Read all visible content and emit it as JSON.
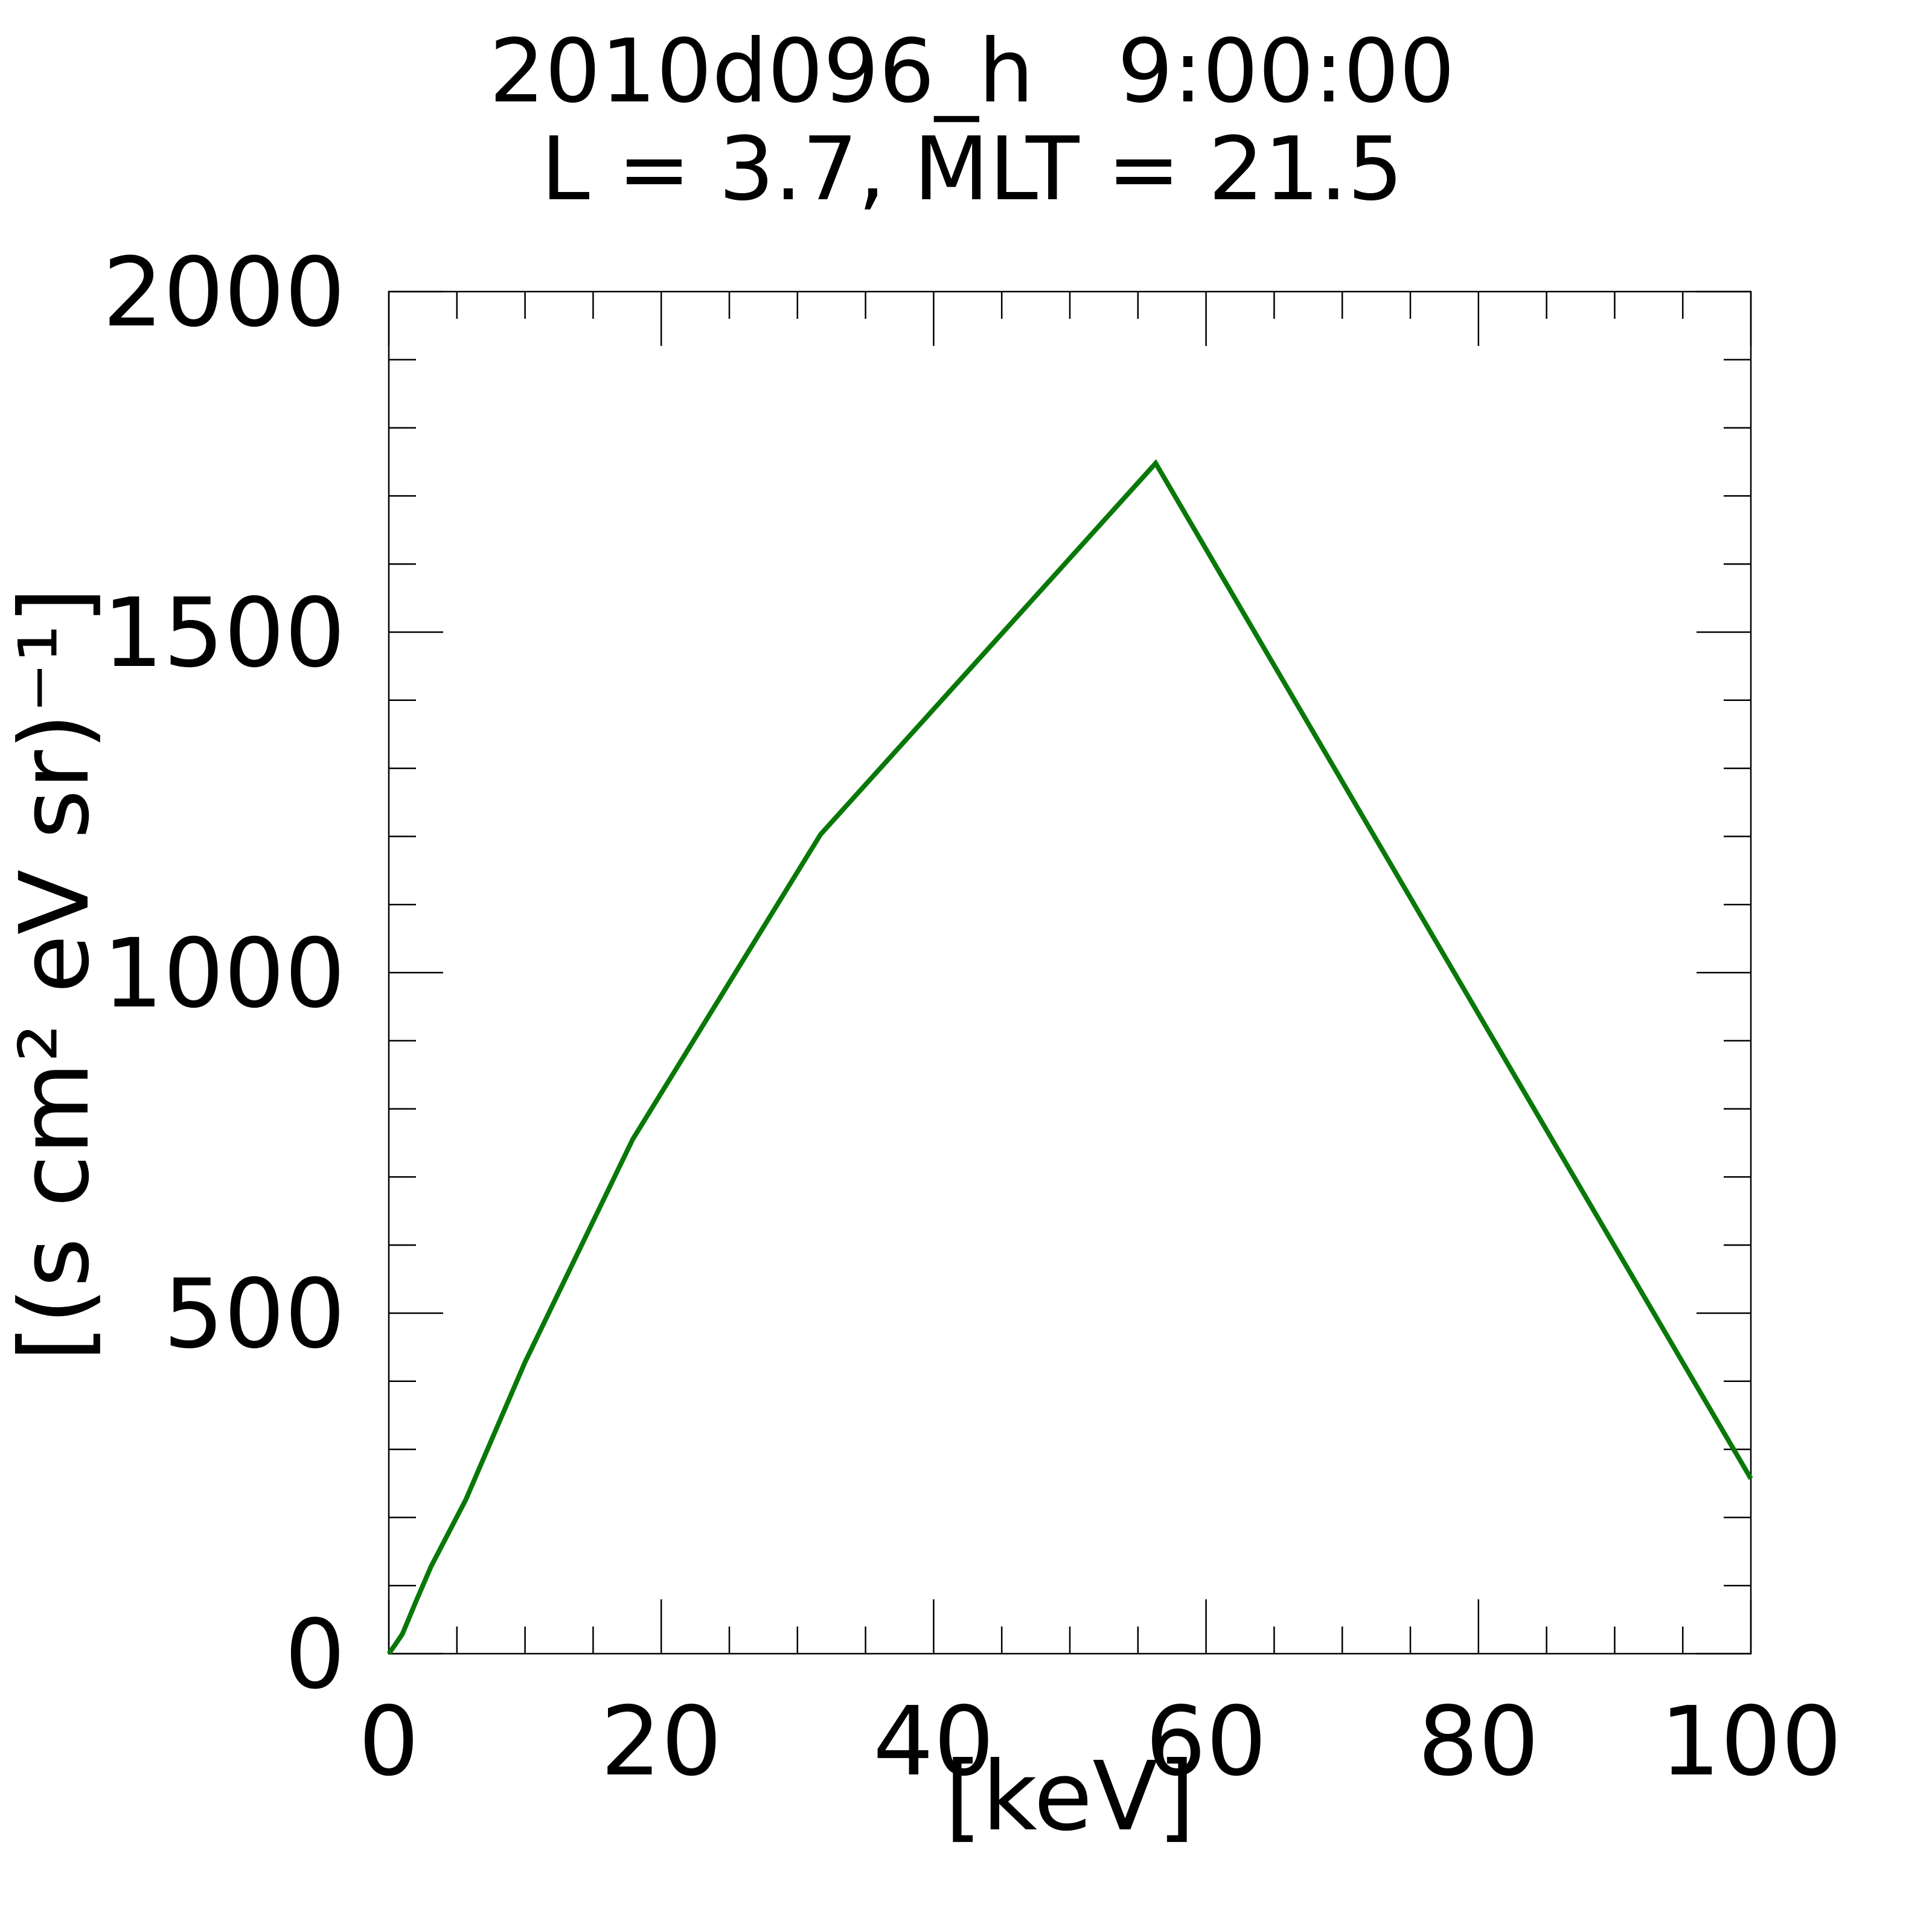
{
  "chart_data": {
    "type": "line",
    "title": [
      "2010d096_h   9:00:00",
      "L = 3.7, MLT = 21.5"
    ],
    "xlabel": "[keV]",
    "ylabel": "[(s cm² eV sr)⁻¹]",
    "x": [
      0,
      0.46,
      1.0,
      2.0,
      3.1,
      5.65,
      10.0,
      17.9,
      31.7,
      56.3,
      100
    ],
    "series": [
      {
        "color": "#087808",
        "values": [
          0,
          13,
          29,
          77,
          128,
          226,
          428,
          755,
          1203,
          1748,
          257
        ]
      }
    ],
    "xlim": [
      0,
      100
    ],
    "xticks": [
      0,
      20,
      40,
      60,
      80,
      100
    ],
    "ylim": [
      0,
      2000
    ],
    "yticks": [
      0,
      500,
      1000,
      1500,
      2000
    ]
  }
}
